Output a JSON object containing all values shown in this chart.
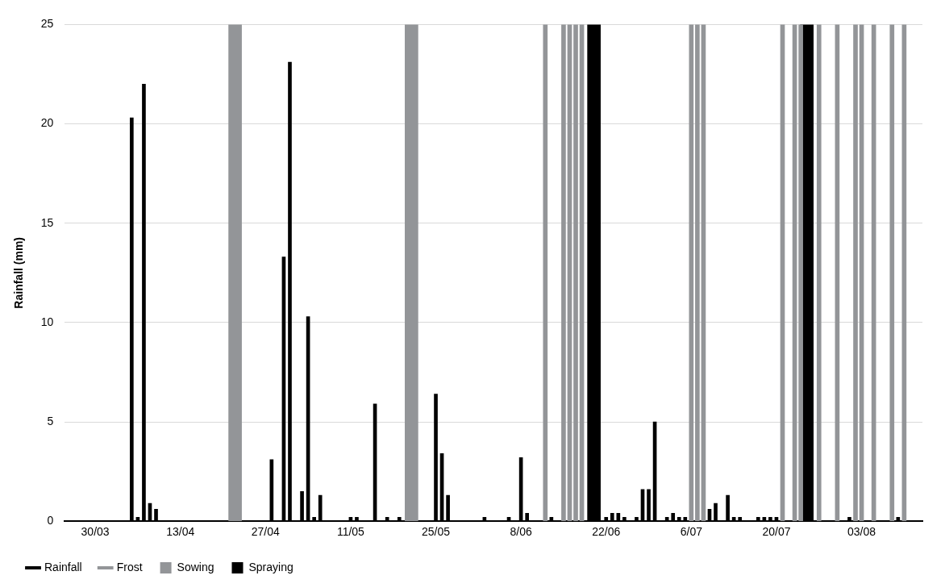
{
  "chart_data": {
    "type": "bar",
    "ylabel": "Rainfall (mm)",
    "xlim": [
      "--03-25",
      "--08-13"
    ],
    "xticks": [
      {
        "value": "--03-30",
        "label": "30/03"
      },
      {
        "value": "--04-13",
        "label": "13/04"
      },
      {
        "value": "--04-27",
        "label": "27/04"
      },
      {
        "value": "--05-11",
        "label": "11/05"
      },
      {
        "value": "--05-25",
        "label": "25/05"
      },
      {
        "value": "--06-08",
        "label": "8/06"
      },
      {
        "value": "--06-22",
        "label": "22/06"
      },
      {
        "value": "--07-06",
        "label": "6/07"
      },
      {
        "value": "--07-20",
        "label": "20/07"
      },
      {
        "value": "--08-03",
        "label": "03/08"
      }
    ],
    "ylim": [
      0,
      25
    ],
    "yticks": [
      0,
      5,
      10,
      15,
      20,
      25
    ],
    "grid": "y",
    "legend": "bottom left",
    "series": [
      {
        "name": "Rainfall",
        "color": "#000000",
        "x": [
          "--04-05",
          "--04-06",
          "--04-07",
          "--04-08",
          "--04-09",
          "--04-28",
          "--04-30",
          "--05-01",
          "--05-03",
          "--05-04",
          "--05-05",
          "--05-06",
          "--05-11",
          "--05-12",
          "--05-15",
          "--05-17",
          "--05-19",
          "--05-25",
          "--05-26",
          "--05-27",
          "--06-02",
          "--06-06",
          "--06-08",
          "--06-09",
          "--06-13",
          "--06-22",
          "--06-23",
          "--06-24",
          "--06-25",
          "--06-27",
          "--06-28",
          "--06-29",
          "--06-30",
          "--07-02",
          "--07-03",
          "--07-04",
          "--07-05",
          "--07-09",
          "--07-10",
          "--07-12",
          "--07-13",
          "--07-14",
          "--07-17",
          "--07-18",
          "--07-19",
          "--07-20",
          "--08-01",
          "--08-09"
        ],
        "values": [
          20.3,
          0.2,
          22.0,
          0.9,
          0.6,
          3.1,
          13.3,
          23.1,
          1.5,
          10.3,
          0.2,
          1.3,
          0.2,
          0.2,
          5.9,
          0.2,
          0.2,
          6.4,
          3.4,
          1.3,
          0.2,
          0.2,
          3.2,
          0.4,
          0.2,
          0.2,
          0.4,
          0.4,
          0.2,
          0.2,
          1.6,
          1.6,
          5.0,
          0.2,
          0.4,
          0.2,
          0.2,
          0.6,
          0.9,
          1.3,
          0.2,
          0.2,
          0.2,
          0.2,
          0.2,
          0.2,
          0.2,
          0.2
        ]
      },
      {
        "name": "Frost",
        "color": "#939598",
        "x": [
          "--06-12",
          "--06-15",
          "--06-16",
          "--06-17",
          "--06-18",
          "--07-06",
          "--07-07",
          "--07-08",
          "--07-21",
          "--07-23",
          "--07-24",
          "--07-27",
          "--07-30",
          "--08-02",
          "--08-03",
          "--08-05",
          "--08-08",
          "--08-10"
        ],
        "values": [
          25,
          25,
          25,
          25,
          25,
          25,
          25,
          25,
          25,
          25,
          25,
          25,
          25,
          25,
          25,
          25,
          25,
          25
        ]
      },
      {
        "name": "Sowing",
        "color": "#939598",
        "x": [
          "--04-22",
          "--05-21"
        ],
        "values": [
          25,
          25
        ]
      },
      {
        "name": "Spraying",
        "color": "#000000",
        "x": [
          "--06-20",
          "--07-25"
        ],
        "values": [
          25,
          25
        ]
      }
    ]
  }
}
